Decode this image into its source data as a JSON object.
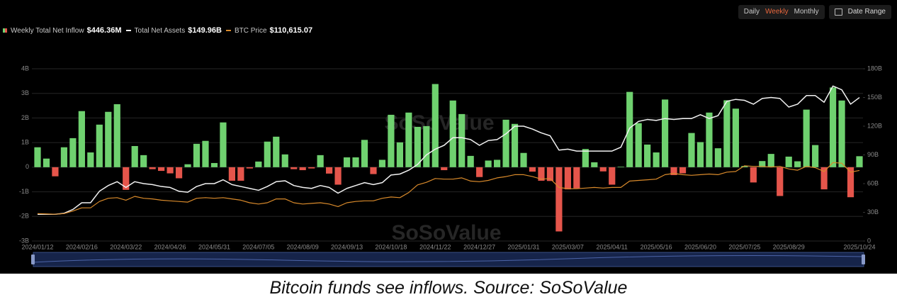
{
  "chart_data": {
    "type": "bar",
    "categories": [
      "2024/01/12",
      null,
      null,
      null,
      null,
      "2024/02/16",
      null,
      null,
      null,
      null,
      "2024/03/22",
      null,
      null,
      null,
      null,
      "2024/04/26",
      null,
      null,
      null,
      null,
      "2024/05/31",
      null,
      null,
      null,
      null,
      "2024/07/05",
      null,
      null,
      null,
      null,
      "2024/08/09",
      null,
      null,
      null,
      null,
      "2024/09/13",
      null,
      null,
      null,
      null,
      "2024/10/18",
      null,
      null,
      null,
      null,
      "2024/11/22",
      null,
      null,
      null,
      null,
      "2024/12/27",
      null,
      null,
      null,
      null,
      "2025/01/31",
      null,
      null,
      null,
      null,
      "2025/03/07",
      null,
      null,
      null,
      null,
      "2025/04/11",
      null,
      null,
      null,
      null,
      "2025/05/16",
      null,
      null,
      null,
      null,
      "2025/06/20",
      null,
      null,
      null,
      null,
      "2025/07/25",
      null,
      null,
      null,
      null,
      "2025/08/29",
      null,
      null,
      null,
      null,
      null,
      null,
      null,
      "2025/10/24"
    ],
    "series": [
      {
        "name": "Weekly Total Net Inflow",
        "legend_value": "$446.36M",
        "type": "bar",
        "color": "#6fd16f",
        "negative_color": "#e5554b",
        "values": [
          0.81,
          0.35,
          -0.37,
          0.81,
          1.18,
          2.28,
          0.6,
          1.73,
          2.25,
          2.56,
          -0.92,
          0.86,
          0.49,
          -0.08,
          -0.15,
          -0.25,
          -0.45,
          0.12,
          0.95,
          1.07,
          0.17,
          1.82,
          -0.55,
          -0.55,
          -0.05,
          0.23,
          1.04,
          1.24,
          0.52,
          -0.08,
          -0.12,
          -0.05,
          0.49,
          -0.26,
          -0.71,
          0.4,
          0.4,
          1.11,
          -0.28,
          0.3,
          2.13,
          1.01,
          2.22,
          1.64,
          1.67,
          3.38,
          -0.12,
          2.71,
          2.16,
          0.46,
          -0.4,
          0.27,
          0.3,
          1.93,
          1.76,
          0.58,
          -0.18,
          -0.55,
          -0.56,
          -2.61,
          -0.9,
          -0.86,
          0.74,
          0.2,
          -0.17,
          -0.71,
          0.02,
          3.06,
          1.79,
          0.92,
          0.6,
          2.75,
          -0.32,
          -0.25,
          1.39,
          1.02,
          2.22,
          0.77,
          2.72,
          2.38,
          0.05,
          -0.62,
          0.25,
          0.54,
          -1.17,
          0.43,
          0.24,
          2.34,
          0.9,
          -0.9,
          3.24,
          2.71,
          -1.22,
          0.44636
        ]
      },
      {
        "name": "Total Net Assets",
        "legend_value": "$149.96B",
        "type": "line",
        "axis": "y2",
        "color": "#f2f2f2",
        "values": [
          28,
          28,
          28,
          29,
          33,
          40,
          40,
          52,
          58,
          62,
          56,
          62,
          60,
          59,
          57,
          56,
          52,
          51,
          57,
          60,
          60,
          64,
          59,
          57,
          55,
          53,
          57,
          62,
          63,
          58,
          56,
          55,
          58,
          56,
          50,
          55,
          58,
          61,
          59,
          61,
          69,
          70,
          74,
          80,
          90,
          96,
          100,
          108,
          108,
          106,
          100,
          105,
          106,
          112,
          120,
          120,
          117,
          113,
          110,
          95,
          96,
          94,
          94,
          94,
          94,
          94,
          98,
          118,
          125,
          127,
          126,
          128,
          127,
          128,
          128,
          132,
          128,
          131,
          146,
          148,
          147,
          143,
          149,
          150,
          149,
          140,
          143,
          152,
          152,
          145,
          162,
          158,
          143,
          149.96
        ]
      },
      {
        "name": "BTC Price",
        "legend_value": "$110,615.07",
        "type": "line",
        "axis": "y3",
        "color": "#d98a2b",
        "values": [
          43000,
          42500,
          42000,
          43000,
          47000,
          52000,
          52000,
          62000,
          67000,
          68000,
          64000,
          70000,
          67000,
          66000,
          64000,
          63000,
          62000,
          61000,
          67000,
          68000,
          67000,
          68000,
          66000,
          64000,
          60000,
          58000,
          60000,
          66000,
          66000,
          60000,
          58000,
          59000,
          60000,
          58000,
          54000,
          60000,
          62000,
          63000,
          63000,
          67000,
          69000,
          68000,
          76000,
          88000,
          92000,
          98000,
          97000,
          97000,
          99000,
          94000,
          93000,
          95000,
          99000,
          101000,
          104000,
          104000,
          101000,
          97000,
          98000,
          84000,
          82000,
          82000,
          83000,
          84000,
          83000,
          84000,
          84000,
          94000,
          95000,
          96000,
          97000,
          104000,
          106000,
          104000,
          103000,
          104000,
          105000,
          104000,
          108000,
          109000,
          118000,
          117000,
          117000,
          116000,
          117000,
          113000,
          111000,
          117000,
          115000,
          109000,
          123000,
          122000,
          108000,
          110615.07
        ]
      }
    ],
    "ylim": [
      -3,
      4
    ],
    "yticks": [
      {
        "value": -3,
        "label": "-3B"
      },
      {
        "value": -2,
        "label": "-2B"
      },
      {
        "value": -1,
        "label": "-1B"
      },
      0,
      {
        "value": 1,
        "label": "1B"
      },
      {
        "value": 2,
        "label": "2B"
      },
      {
        "value": 3,
        "label": "3B"
      },
      {
        "value": 4,
        "label": "4B"
      }
    ],
    "y2lim": [
      0,
      180
    ],
    "y2ticks": [
      0,
      {
        "value": 30,
        "label": "30B"
      },
      {
        "value": 60,
        "label": "60B"
      },
      {
        "value": 90,
        "label": "90B"
      },
      {
        "value": 120,
        "label": "120B"
      },
      {
        "value": 150,
        "label": "150B"
      },
      {
        "value": 180,
        "label": "180B"
      }
    ],
    "y3lim": [
      0,
      270000
    ],
    "grid": true,
    "watermark": "SoSoValue"
  },
  "controls": {
    "intervals": [
      "Daily",
      "Weekly",
      "Monthly"
    ],
    "active": "Weekly",
    "date_range": "Date Range"
  },
  "caption": "Bitcoin funds see inflows. Source: SoSoValue"
}
